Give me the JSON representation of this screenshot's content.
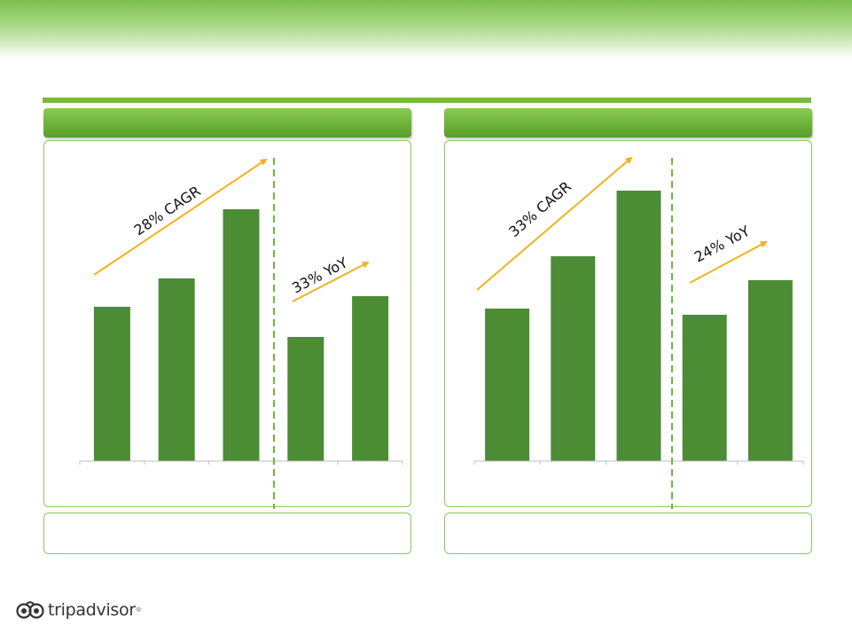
{
  "brand": {
    "logo_text": "tripadvisor",
    "logo_mark": "®"
  },
  "colors": {
    "bar": "#4c8c35",
    "arrow": "#f2b21b",
    "divider": "#6fb83a",
    "accent": "#79b93c"
  },
  "chart_data": [
    {
      "type": "bar",
      "categories": [
        "",
        "",
        "",
        "",
        ""
      ],
      "values": [
        174,
        206,
        284,
        140,
        186
      ],
      "ylim": [
        0,
        300
      ],
      "annotations": [
        {
          "text": "28% CAGR"
        },
        {
          "text": "33% YoY"
        }
      ]
    },
    {
      "type": "bar",
      "categories": [
        "",
        "",
        "",
        "",
        ""
      ],
      "values": [
        172,
        231,
        305,
        165,
        204
      ],
      "ylim": [
        0,
        320
      ],
      "annotations": [
        {
          "text": "33% CAGR"
        },
        {
          "text": "24% YoY"
        }
      ]
    }
  ]
}
